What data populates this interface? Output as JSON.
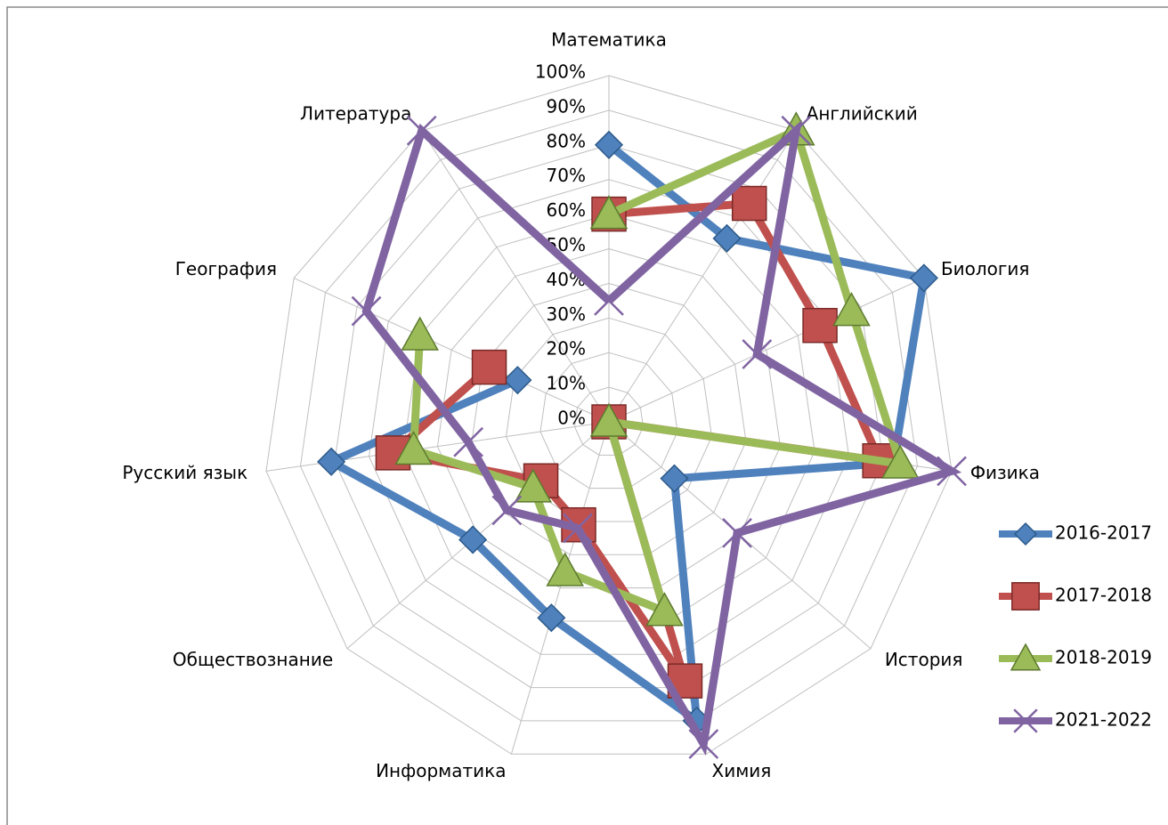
{
  "chart_data": {
    "type": "radar",
    "categories": [
      "Математика",
      "Английский",
      "Биология",
      "Физика",
      "История",
      "Химия",
      "Информатика",
      "Обществознание",
      "Русский язык",
      "География",
      "Литература"
    ],
    "series": [
      {
        "name": "2016-2017",
        "color": "#4f81bd",
        "marker": "diamond",
        "values": [
          80,
          63,
          100,
          83,
          25,
          90,
          59,
          52,
          81,
          29,
          null
        ]
      },
      {
        "name": "2017-2018",
        "color": "#c0504d",
        "marker": "square",
        "values": [
          60,
          75,
          67,
          79,
          0,
          78,
          31,
          26,
          63,
          38,
          null
        ]
      },
      {
        "name": "2018-2019",
        "color": "#9bbb59",
        "marker": "triangle",
        "values": [
          60,
          100,
          77,
          85,
          0,
          57,
          45,
          29,
          57,
          60,
          null
        ]
      },
      {
        "name": "2021-2022",
        "color": "#8064a2",
        "marker": "x",
        "values": [
          35,
          100,
          47,
          100,
          49,
          97,
          32,
          39,
          41,
          77,
          100
        ]
      }
    ],
    "rlim": [
      0,
      100
    ],
    "rticks": [
      {
        "value": 0,
        "label": "0%"
      },
      {
        "value": 10,
        "label": "10%"
      },
      {
        "value": 20,
        "label": "20%"
      },
      {
        "value": 30,
        "label": "30%"
      },
      {
        "value": 40,
        "label": "40%"
      },
      {
        "value": 50,
        "label": "50%"
      },
      {
        "value": 60,
        "label": "60%"
      },
      {
        "value": 70,
        "label": "70%"
      },
      {
        "value": 80,
        "label": "80%"
      },
      {
        "value": 90,
        "label": "90%"
      },
      {
        "value": 100,
        "label": "100%"
      }
    ],
    "grid": true,
    "legend": "right"
  }
}
